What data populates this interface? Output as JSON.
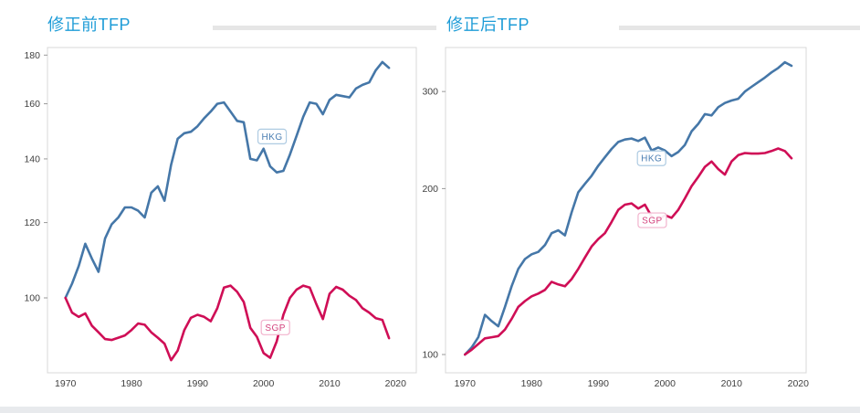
{
  "page": {
    "background": "#ffffff",
    "divider_color": "#e6e6e6",
    "bottom_strip_color": "#e8eaed"
  },
  "axis_style": {
    "tick_text_color": "#3f3f3f",
    "border_color": "#d8d8d8",
    "tick_mark_color": "#9a9a9a"
  },
  "chart_data": [
    {
      "type": "line",
      "title": "修正前TFP",
      "title_color": "#1e9cd7",
      "y_scale": "log",
      "ylim": [
        84,
        183
      ],
      "grid": false,
      "legend_position": "inline-labels",
      "x": [
        1970,
        1971,
        1972,
        1973,
        1974,
        1975,
        1976,
        1977,
        1978,
        1979,
        1980,
        1981,
        1982,
        1983,
        1984,
        1985,
        1986,
        1987,
        1988,
        1989,
        1990,
        1991,
        1992,
        1993,
        1994,
        1995,
        1996,
        1997,
        1998,
        1999,
        2000,
        2001,
        2002,
        2003,
        2004,
        2005,
        2006,
        2007,
        2008,
        2009,
        2010,
        2011,
        2012,
        2013,
        2014,
        2015,
        2016,
        2017,
        2018,
        2019
      ],
      "xticks": [
        1970,
        1980,
        1990,
        2000,
        2010,
        2020
      ],
      "yticks": [
        100,
        120,
        140,
        160,
        180
      ],
      "series": [
        {
          "name": "HKG",
          "color": "#4577a8",
          "label_box": {
            "year": 2001.3,
            "value": 147.8,
            "text_color": "#4a7eb2",
            "border_color": "#aecbe2"
          },
          "values": [
            100,
            103.5,
            108,
            114,
            110,
            106.5,
            115.5,
            119.5,
            121.5,
            124.5,
            124.5,
            123.5,
            121.5,
            129,
            131,
            126.5,
            138,
            147,
            149,
            149.5,
            151.5,
            154.5,
            157,
            160,
            160.5,
            157,
            153.5,
            153,
            140,
            139.5,
            143.5,
            137.5,
            135.5,
            136,
            141.5,
            148,
            155,
            160.5,
            160,
            156,
            161.5,
            163.5,
            163,
            162.5,
            166,
            167.5,
            168.5,
            173.5,
            177,
            174.5
          ]
        },
        {
          "name": "SGP",
          "color": "#cf0e56",
          "label_box": {
            "year": 2001.8,
            "value": 93.1,
            "text_color": "#d4457f",
            "border_color": "#f2b3cd"
          },
          "values": [
            100,
            96.5,
            95.5,
            96.3,
            93.5,
            92,
            90.5,
            90.3,
            90.8,
            91.3,
            92.5,
            94,
            93.7,
            92,
            90.8,
            89.5,
            86,
            88,
            92.5,
            95.3,
            96,
            95.5,
            94.5,
            97.5,
            102.5,
            103,
            101.5,
            99,
            93,
            91,
            87.5,
            86.5,
            90,
            96,
            100,
            102,
            103,
            102.5,
            98.5,
            95,
            101,
            102.7,
            102,
            100.5,
            99.5,
            97.5,
            96.5,
            95.2,
            94.8,
            90.7
          ]
        }
      ]
    },
    {
      "type": "line",
      "title": "修正后TFP",
      "title_color": "#1e9cd7",
      "y_scale": "log",
      "ylim": [
        97,
        345
      ],
      "grid": false,
      "legend_position": "inline-labels",
      "x": [
        1970,
        1971,
        1972,
        1973,
        1974,
        1975,
        1976,
        1977,
        1978,
        1979,
        1980,
        1981,
        1982,
        1983,
        1984,
        1985,
        1986,
        1987,
        1988,
        1989,
        1990,
        1991,
        1992,
        1993,
        1994,
        1995,
        1996,
        1997,
        1998,
        1999,
        2000,
        2001,
        2002,
        2003,
        2004,
        2005,
        2006,
        2007,
        2008,
        2009,
        2010,
        2011,
        2012,
        2013,
        2014,
        2015,
        2016,
        2017,
        2018,
        2019
      ],
      "xticks": [
        1970,
        1980,
        1990,
        2000,
        2010,
        2020
      ],
      "yticks": [
        100,
        200,
        300
      ],
      "series": [
        {
          "name": "HKG",
          "color": "#4577a8",
          "label_box": {
            "year": 1998.0,
            "value": 227,
            "text_color": "#4a7eb2",
            "border_color": "#aecbe2"
          },
          "values": [
            100,
            103,
            107.5,
            118,
            115,
            112.5,
            122,
            133,
            143,
            149,
            152,
            153.5,
            158,
            166,
            168,
            164.5,
            181,
            197,
            204,
            211,
            220,
            228,
            236,
            243,
            245.5,
            246.5,
            244,
            247.5,
            234.5,
            237.5,
            234.5,
            229,
            233,
            240,
            254,
            262,
            273,
            271.5,
            281,
            286,
            289,
            291,
            300,
            306,
            312,
            318,
            325,
            331,
            339,
            334
          ]
        },
        {
          "name": "SGP",
          "color": "#cf0e56",
          "label_box": {
            "year": 1998.1,
            "value": 175.2,
            "text_color": "#d4457f",
            "border_color": "#f2b3cd"
          },
          "values": [
            100,
            102,
            104.5,
            107,
            107.5,
            108,
            111,
            116,
            122,
            125,
            127.5,
            129,
            131,
            135.5,
            134,
            133,
            137,
            143,
            150,
            157,
            162,
            166,
            174,
            183,
            187,
            188,
            184,
            187,
            178,
            175,
            179,
            177,
            183,
            192,
            202,
            210,
            219,
            224,
            217,
            212,
            224,
            230,
            232,
            231.5,
            231.5,
            232,
            234,
            236.5,
            234,
            227
          ]
        }
      ]
    }
  ]
}
